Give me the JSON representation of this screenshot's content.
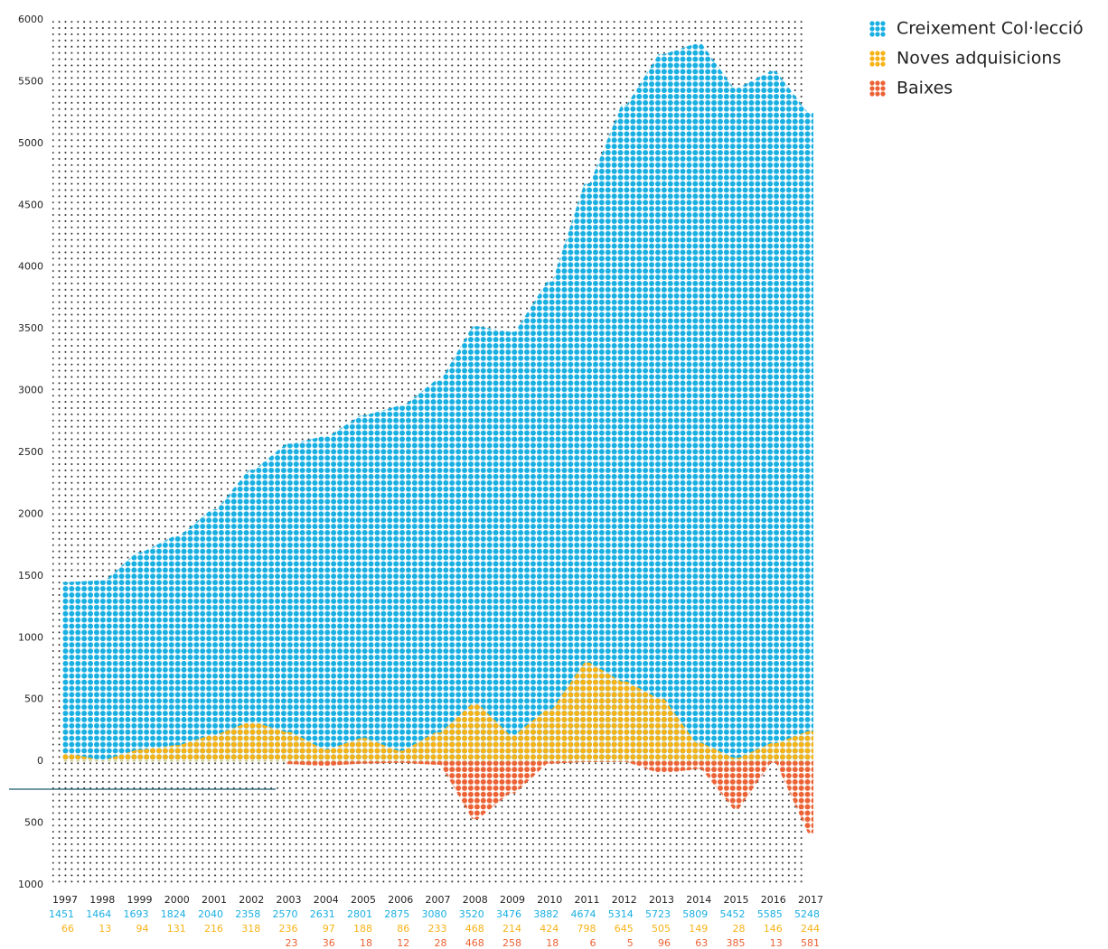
{
  "chart_data": {
    "type": "area",
    "categories": [
      "1997",
      "1998",
      "1999",
      "2000",
      "2001",
      "2002",
      "2003",
      "2004",
      "2005",
      "2006",
      "2007",
      "2008",
      "2009",
      "2010",
      "2011",
      "2012",
      "2013",
      "2014",
      "2015",
      "2016",
      "2017"
    ],
    "series": [
      {
        "name": "Creixement Col·lecció",
        "color": "#18afe2",
        "values": [
          1451,
          1464,
          1693,
          1824,
          2040,
          2358,
          2570,
          2631,
          2801,
          2875,
          3080,
          3520,
          3476,
          3882,
          4674,
          5314,
          5723,
          5809,
          5452,
          5585,
          5248
        ]
      },
      {
        "name": "Noves adquisicions",
        "color": "#f7b316",
        "values": [
          66,
          13,
          94,
          131,
          216,
          318,
          236,
          97,
          188,
          86,
          233,
          468,
          214,
          424,
          798,
          645,
          505,
          149,
          28,
          146,
          244
        ]
      },
      {
        "name": "Baixes",
        "color": "#ec6235",
        "direction": "down",
        "values": [
          null,
          null,
          null,
          null,
          null,
          null,
          23,
          36,
          18,
          12,
          28,
          468,
          258,
          18,
          6,
          5,
          96,
          63,
          385,
          13,
          581
        ]
      }
    ],
    "ylim": [
      -1000,
      6000
    ],
    "yticks": [
      {
        "value": -1000,
        "label": "1000"
      },
      {
        "value": -500,
        "label": "500"
      },
      0,
      500,
      1000,
      1500,
      2000,
      2500,
      3000,
      3500,
      4000,
      4500,
      5000,
      5500,
      6000
    ],
    "legend": "top-right"
  }
}
